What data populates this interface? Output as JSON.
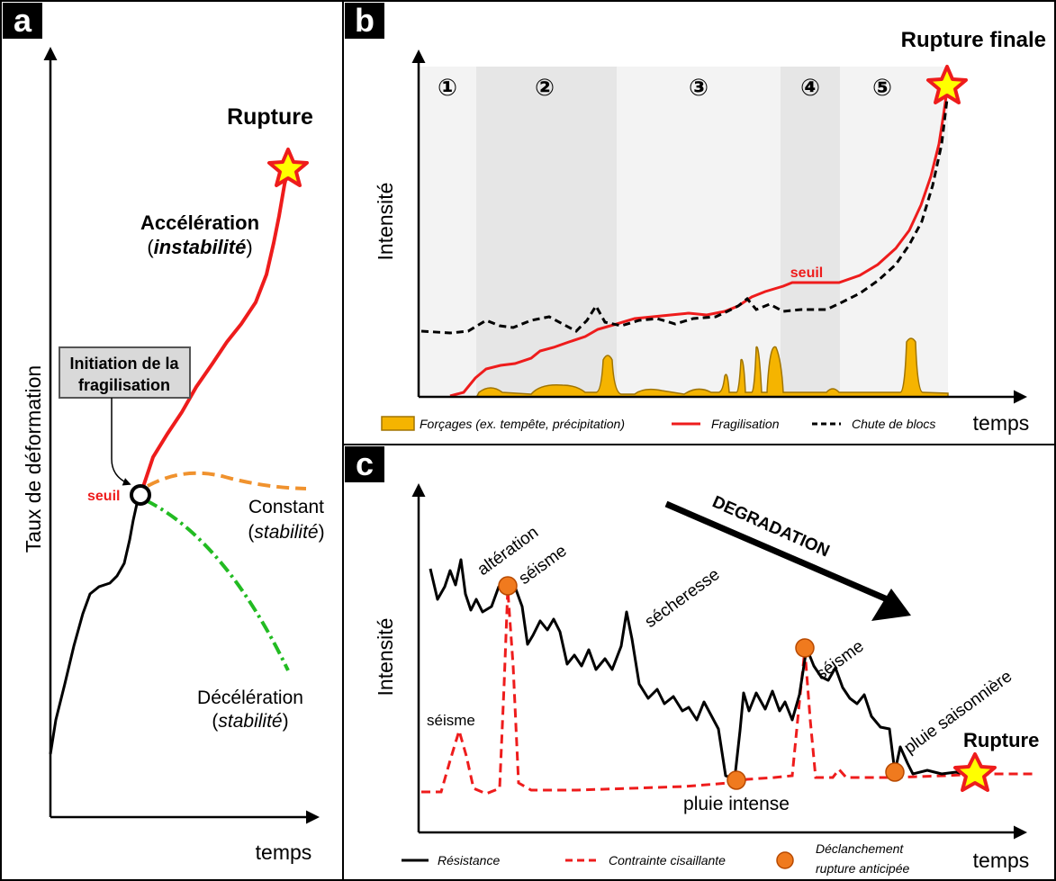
{
  "panel_a": {
    "letter": "a",
    "y_axis_label": "Taux de déformation",
    "x_axis_label": "temps",
    "rupture_label": "Rupture",
    "acceleration_label": "Accélération",
    "acceleration_paren_open": "(",
    "acceleration_sub": "instabilité",
    "acceleration_paren_close": ")",
    "initiation_line1": "Initiation de la",
    "initiation_line2": "fragilisation",
    "seuil_label": "seuil",
    "constant_label": "Constant",
    "constant_paren_open": "(",
    "constant_sub": "stabilité",
    "constant_paren_close": ")",
    "deceleration_label": "Décélération",
    "deceleration_paren_open": "(",
    "deceleration_sub": "stabilité",
    "deceleration_paren_close": ")"
  },
  "panel_b": {
    "letter": "b",
    "title": "Rupture finale",
    "y_axis_label": "Intensité",
    "x_axis_label": "temps",
    "phases": [
      "①",
      "②",
      "③",
      "④",
      "⑤"
    ],
    "seuil_label": "seuil",
    "legend": {
      "forcages": "Forçages (ex. tempête, précipitation)",
      "fragilisation": "Fragilisation",
      "chute": "Chute de blocs"
    }
  },
  "panel_c": {
    "letter": "c",
    "y_axis_label": "Intensité",
    "x_axis_label": "temps",
    "degradation_label": "DEGRADATION",
    "rupture_label": "Rupture",
    "annotations": {
      "alteration": "altération",
      "seisme_1": "séisme",
      "secheresse": "sécheresse",
      "seisme_2": "séisme",
      "pluie_saisonniere": "pluie saisonnière",
      "seisme_3": "séisme",
      "pluie_intense": "pluie intense"
    },
    "legend": {
      "resistance": "Résistance",
      "contrainte": "Contrainte cisaillante",
      "declenchement_line1": "Déclanchement",
      "declenchement_line2": "rupture anticipée"
    }
  },
  "colors": {
    "red": "#ee1c1c",
    "orange_dash": "#f0922e",
    "green_dash": "#22bb22",
    "forcing_fill": "#f5b400",
    "forcing_stroke": "#a07400",
    "marker_orange": "#f07a1e",
    "star_yellow": "#ffff00",
    "phase_dark": "#e6e6e6",
    "phase_light": "#f3f3f3",
    "callout_bg": "#d9d9d9"
  }
}
